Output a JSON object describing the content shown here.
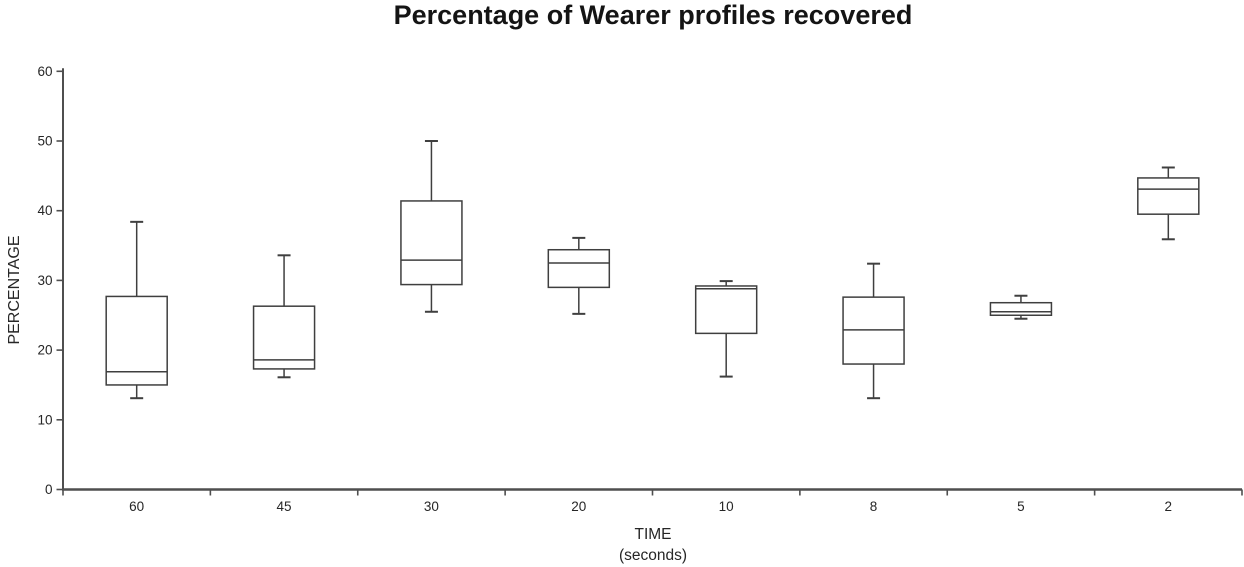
{
  "chart_data": {
    "type": "boxplot",
    "title": "Percentage of Wearer profiles recovered",
    "xlabel": "TIME",
    "xlabel_sub": "(seconds)",
    "ylabel": "PERCENTAGE",
    "ylim": [
      0,
      60
    ],
    "ytick_step": 10,
    "yticks": [
      0,
      10,
      20,
      30,
      40,
      50,
      60
    ],
    "categories": [
      "60",
      "45",
      "30",
      "20",
      "10",
      "8",
      "5",
      "2"
    ],
    "series": [
      {
        "category": "60",
        "low": 13.1,
        "q1": 15.0,
        "median": 16.9,
        "q3": 27.7,
        "high": 38.4
      },
      {
        "category": "45",
        "low": 16.1,
        "q1": 17.3,
        "median": 18.6,
        "q3": 26.3,
        "high": 33.6
      },
      {
        "category": "30",
        "low": 25.5,
        "q1": 29.4,
        "median": 32.9,
        "q3": 41.4,
        "high": 50.0
      },
      {
        "category": "20",
        "low": 25.2,
        "q1": 29.0,
        "median": 32.5,
        "q3": 34.4,
        "high": 36.1
      },
      {
        "category": "10",
        "low": 16.2,
        "q1": 22.4,
        "median": 28.8,
        "q3": 29.2,
        "high": 29.9
      },
      {
        "category": "8",
        "low": 13.1,
        "q1": 18.0,
        "median": 22.9,
        "q3": 27.6,
        "high": 32.4
      },
      {
        "category": "5",
        "low": 24.5,
        "q1": 25.0,
        "median": 25.5,
        "q3": 26.8,
        "high": 27.8
      },
      {
        "category": "2",
        "low": 35.9,
        "q1": 39.5,
        "median": 43.1,
        "q3": 44.7,
        "high": 46.2
      }
    ],
    "grid": false,
    "legend": "none",
    "colors": {
      "box_stroke": "#3f3f3f",
      "box_fill": "#ffffff",
      "axis": "#4f4f4f",
      "text": "#262626",
      "title": "#141414"
    }
  }
}
